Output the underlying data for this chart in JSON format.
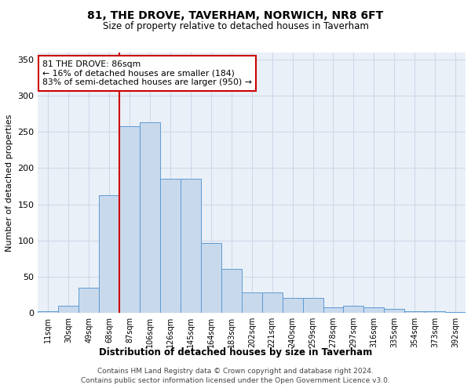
{
  "title": "81, THE DROVE, TAVERHAM, NORWICH, NR8 6FT",
  "subtitle": "Size of property relative to detached houses in Taverham",
  "xlabel": "Distribution of detached houses by size in Taverham",
  "ylabel": "Number of detached properties",
  "bar_color": "#c9d9ec",
  "bar_edge_color": "#5b9bd5",
  "grid_color": "#d0d8e8",
  "background_color": "#eaf0f8",
  "categories": [
    "11sqm",
    "30sqm",
    "49sqm",
    "68sqm",
    "87sqm",
    "106sqm",
    "126sqm",
    "145sqm",
    "164sqm",
    "183sqm",
    "202sqm",
    "221sqm",
    "240sqm",
    "259sqm",
    "278sqm",
    "297sqm",
    "316sqm",
    "335sqm",
    "354sqm",
    "373sqm",
    "392sqm"
  ],
  "values": [
    2,
    10,
    35,
    163,
    258,
    263,
    185,
    185,
    96,
    61,
    28,
    28,
    20,
    20,
    7,
    10,
    7,
    5,
    2,
    2,
    1
  ],
  "vline_x_index": 4,
  "vline_color": "#cc0000",
  "annotation_text": "81 THE DROVE: 86sqm\n← 16% of detached houses are smaller (184)\n83% of semi-detached houses are larger (950) →",
  "annotation_box_color": "white",
  "annotation_box_edge": "#cc0000",
  "ylim": [
    0,
    360
  ],
  "yticks": [
    0,
    50,
    100,
    150,
    200,
    250,
    300,
    350
  ],
  "footer1": "Contains HM Land Registry data © Crown copyright and database right 2024.",
  "footer2": "Contains public sector information licensed under the Open Government Licence v3.0."
}
